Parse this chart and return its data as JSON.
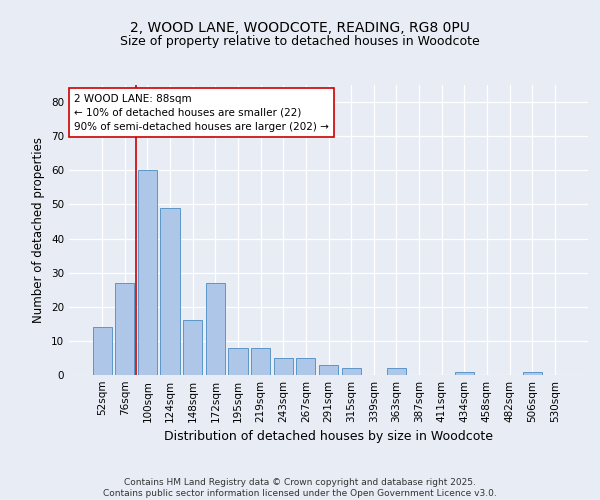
{
  "title": "2, WOOD LANE, WOODCOTE, READING, RG8 0PU",
  "subtitle": "Size of property relative to detached houses in Woodcote",
  "xlabel": "Distribution of detached houses by size in Woodcote",
  "ylabel": "Number of detached properties",
  "footer_line1": "Contains HM Land Registry data © Crown copyright and database right 2025.",
  "footer_line2": "Contains public sector information licensed under the Open Government Licence v3.0.",
  "categories": [
    "52sqm",
    "76sqm",
    "100sqm",
    "124sqm",
    "148sqm",
    "172sqm",
    "195sqm",
    "219sqm",
    "243sqm",
    "267sqm",
    "291sqm",
    "315sqm",
    "339sqm",
    "363sqm",
    "387sqm",
    "411sqm",
    "434sqm",
    "458sqm",
    "482sqm",
    "506sqm",
    "530sqm"
  ],
  "values": [
    14,
    27,
    60,
    49,
    16,
    27,
    8,
    8,
    5,
    5,
    3,
    2,
    0,
    2,
    0,
    0,
    1,
    0,
    0,
    1,
    0
  ],
  "bar_color": "#aec6e8",
  "bar_edge_color": "#5a96c8",
  "background_color": "#e8edf5",
  "plot_bg_color": "#e8edf5",
  "grid_color": "#ffffff",
  "vline_color": "#cc0000",
  "vline_x": 1.5,
  "annotation_text": "2 WOOD LANE: 88sqm\n← 10% of detached houses are smaller (22)\n90% of semi-detached houses are larger (202) →",
  "annotation_fontsize": 7.5,
  "annotation_box_color": "#ffffff",
  "annotation_box_edge": "#cc0000",
  "ylim": [
    0,
    85
  ],
  "yticks": [
    0,
    10,
    20,
    30,
    40,
    50,
    60,
    70,
    80
  ],
  "title_fontsize": 10,
  "subtitle_fontsize": 9,
  "xlabel_fontsize": 9,
  "ylabel_fontsize": 8.5,
  "tick_fontsize": 7.5,
  "footer_fontsize": 6.5
}
